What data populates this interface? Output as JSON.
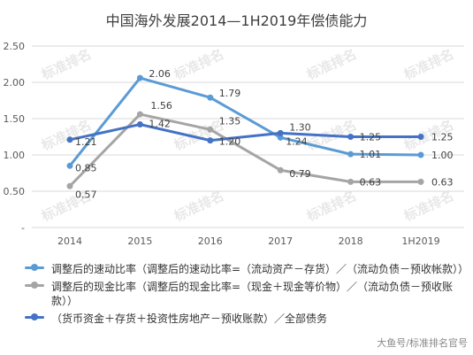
{
  "chart_data": {
    "type": "line",
    "title": "中国海外发展2014—1H2019年偿债能力",
    "categories": [
      "2014",
      "2015",
      "2016",
      "2017",
      "2018",
      "1H2019"
    ],
    "ylim": [
      0,
      2.5
    ],
    "yticks": [
      "-",
      "0.50",
      "1.00",
      "1.50",
      "2.00",
      "2.50"
    ],
    "grid": true,
    "legend_position": "bottom",
    "series": [
      {
        "name": "调整后的速动比率（调整后的速动比率=（流动资产－存货）／（流动负债－预收帐款））",
        "color": "#5B9BD5",
        "values": [
          0.85,
          2.06,
          1.79,
          1.24,
          1.01,
          1.0
        ],
        "labels": [
          "0.85",
          "2.06",
          "1.79",
          "1.24",
          "1.01",
          "1.00"
        ]
      },
      {
        "name": "调整后的现金比率（调整后的现金比率=（现金＋现金等价物）／（流动负债－预收账款））",
        "color": "#A5A5A5",
        "values": [
          0.57,
          1.56,
          1.35,
          0.79,
          0.63,
          0.63
        ],
        "labels": [
          "0.57",
          "1.56",
          "1.35",
          "0.79",
          "0.63",
          "0.63"
        ]
      },
      {
        "name": "（货币资金＋存货＋投资性房地产－预收账款）／全部债务",
        "color": "#4472C4",
        "values": [
          1.21,
          1.42,
          1.2,
          1.3,
          1.25,
          1.25
        ],
        "labels": [
          "1.21",
          "1.42",
          "1.20",
          "1.30",
          "1.25",
          "1.25"
        ]
      }
    ]
  },
  "watermark_text": "大鱼号/标准排名官号",
  "watermark_logo_text": "标准排名"
}
